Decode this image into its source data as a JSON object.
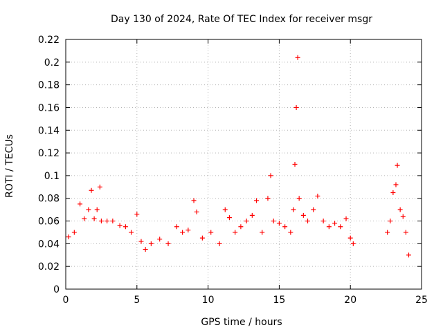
{
  "chart_data": {
    "type": "scatter",
    "title": "Day 130 of 2024, Rate Of TEC Index for receiver msgr",
    "xlabel": "GPS time / hours",
    "ylabel": "ROTI / TECUs",
    "xlim": [
      0,
      25
    ],
    "ylim": [
      0,
      0.22
    ],
    "x_ticks": [
      0,
      5,
      10,
      15,
      20,
      25
    ],
    "x_tick_labels": [
      "0",
      "5",
      "10",
      "15",
      "20",
      "25"
    ],
    "y_ticks": [
      0,
      0.02,
      0.04,
      0.06,
      0.08,
      0.1,
      0.12,
      0.14,
      0.16,
      0.18,
      0.2,
      0.22
    ],
    "y_tick_labels": [
      "0",
      "0.02",
      "0.04",
      "0.06",
      "0.08",
      "0.1",
      "0.12",
      "0.14",
      "0.16",
      "0.18",
      "0.2",
      "0.22"
    ],
    "grid": true,
    "marker": "+",
    "color": "#ff0000",
    "series": [
      {
        "name": "ROTI",
        "x": [
          0.2,
          0.6,
          1.0,
          1.3,
          1.6,
          1.8,
          2.0,
          2.2,
          2.4,
          2.5,
          2.9,
          3.3,
          3.8,
          4.2,
          4.6,
          5.0,
          5.3,
          5.6,
          6.0,
          6.6,
          7.2,
          7.8,
          8.2,
          8.6,
          9.0,
          9.2,
          9.6,
          10.2,
          10.8,
          11.2,
          11.5,
          11.9,
          12.3,
          12.7,
          13.1,
          13.4,
          13.8,
          14.2,
          14.4,
          14.6,
          15.0,
          15.4,
          15.8,
          16.0,
          16.1,
          16.2,
          16.3,
          16.4,
          16.7,
          17.0,
          17.4,
          17.7,
          18.1,
          18.5,
          18.9,
          19.3,
          19.7,
          20.0,
          20.2,
          22.6,
          22.8,
          23.0,
          23.2,
          23.3,
          23.5,
          23.7,
          23.9,
          24.1
        ],
        "y": [
          0.046,
          0.05,
          0.075,
          0.062,
          0.07,
          0.087,
          0.062,
          0.07,
          0.09,
          0.06,
          0.06,
          0.06,
          0.056,
          0.055,
          0.05,
          0.066,
          0.042,
          0.035,
          0.04,
          0.044,
          0.04,
          0.055,
          0.05,
          0.052,
          0.078,
          0.068,
          0.045,
          0.05,
          0.04,
          0.07,
          0.063,
          0.05,
          0.055,
          0.06,
          0.065,
          0.078,
          0.05,
          0.08,
          0.1,
          0.06,
          0.058,
          0.055,
          0.05,
          0.07,
          0.11,
          0.16,
          0.204,
          0.08,
          0.065,
          0.06,
          0.07,
          0.082,
          0.06,
          0.055,
          0.058,
          0.055,
          0.062,
          0.045,
          0.04,
          0.05,
          0.06,
          0.085,
          0.092,
          0.109,
          0.07,
          0.064,
          0.05,
          0.03
        ]
      }
    ]
  }
}
